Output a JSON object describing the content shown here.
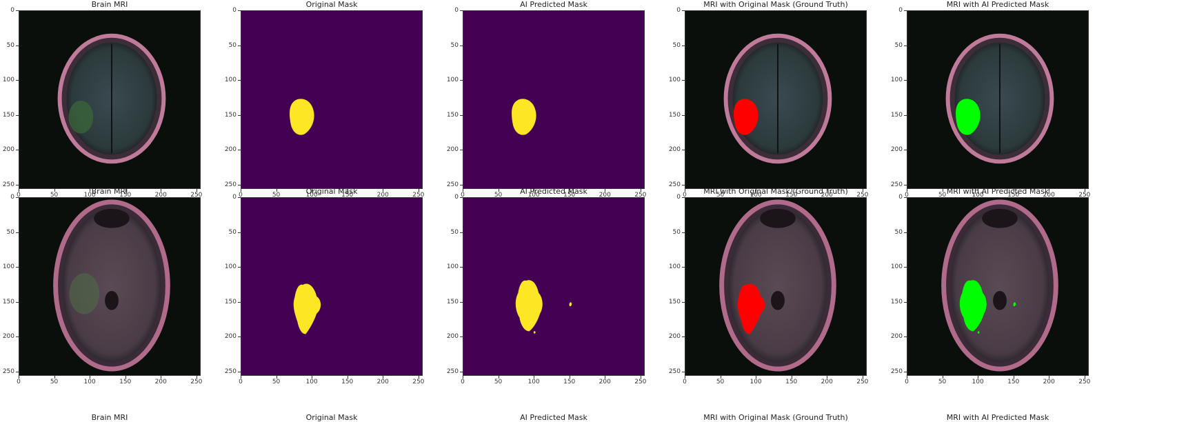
{
  "figure": {
    "rows": [
      {
        "panels": [
          {
            "title": "Brain MRI",
            "kind": "mri",
            "mask": "none",
            "case": 1
          },
          {
            "title": "Original Mask",
            "kind": "mask",
            "mask": "orig",
            "case": 1
          },
          {
            "title": "AI Predicted Mask",
            "kind": "mask",
            "mask": "pred",
            "case": 1
          },
          {
            "title": "MRI with Original Mask (Ground Truth)",
            "kind": "overlay",
            "mask": "orig",
            "case": 1
          },
          {
            "title": "MRI with AI Predicted Mask",
            "kind": "overlay",
            "mask": "pred",
            "case": 1
          }
        ]
      },
      {
        "panels": [
          {
            "title": "Brain MRI",
            "kind": "mri",
            "mask": "none",
            "case": 2
          },
          {
            "title": "Original Mask",
            "kind": "mask",
            "mask": "orig",
            "case": 2
          },
          {
            "title": "AI Predicted Mask",
            "kind": "mask",
            "mask": "pred",
            "case": 2
          },
          {
            "title": "MRI with Original Mask (Ground Truth)",
            "kind": "overlay",
            "mask": "orig",
            "case": 2
          },
          {
            "title": "MRI with AI Predicted Mask",
            "kind": "overlay",
            "mask": "pred",
            "case": 2
          }
        ]
      }
    ],
    "bottom_titles": [
      "Brain MRI",
      "Original Mask",
      "AI Predicted Mask",
      "MRI with Original Mask (Ground Truth)",
      "MRI with AI Predicted Mask"
    ],
    "x_ticks": [
      "0",
      "50",
      "100",
      "150",
      "200",
      "250"
    ],
    "y_ticks": [
      "0",
      "50",
      "100",
      "150",
      "200",
      "250"
    ],
    "axis_range": [
      0,
      256
    ]
  },
  "colors": {
    "mask_background": "#440154",
    "mask_foreground": "#fde725",
    "ground_truth_overlay": "#ff0000",
    "prediction_overlay": "#00ff00"
  }
}
